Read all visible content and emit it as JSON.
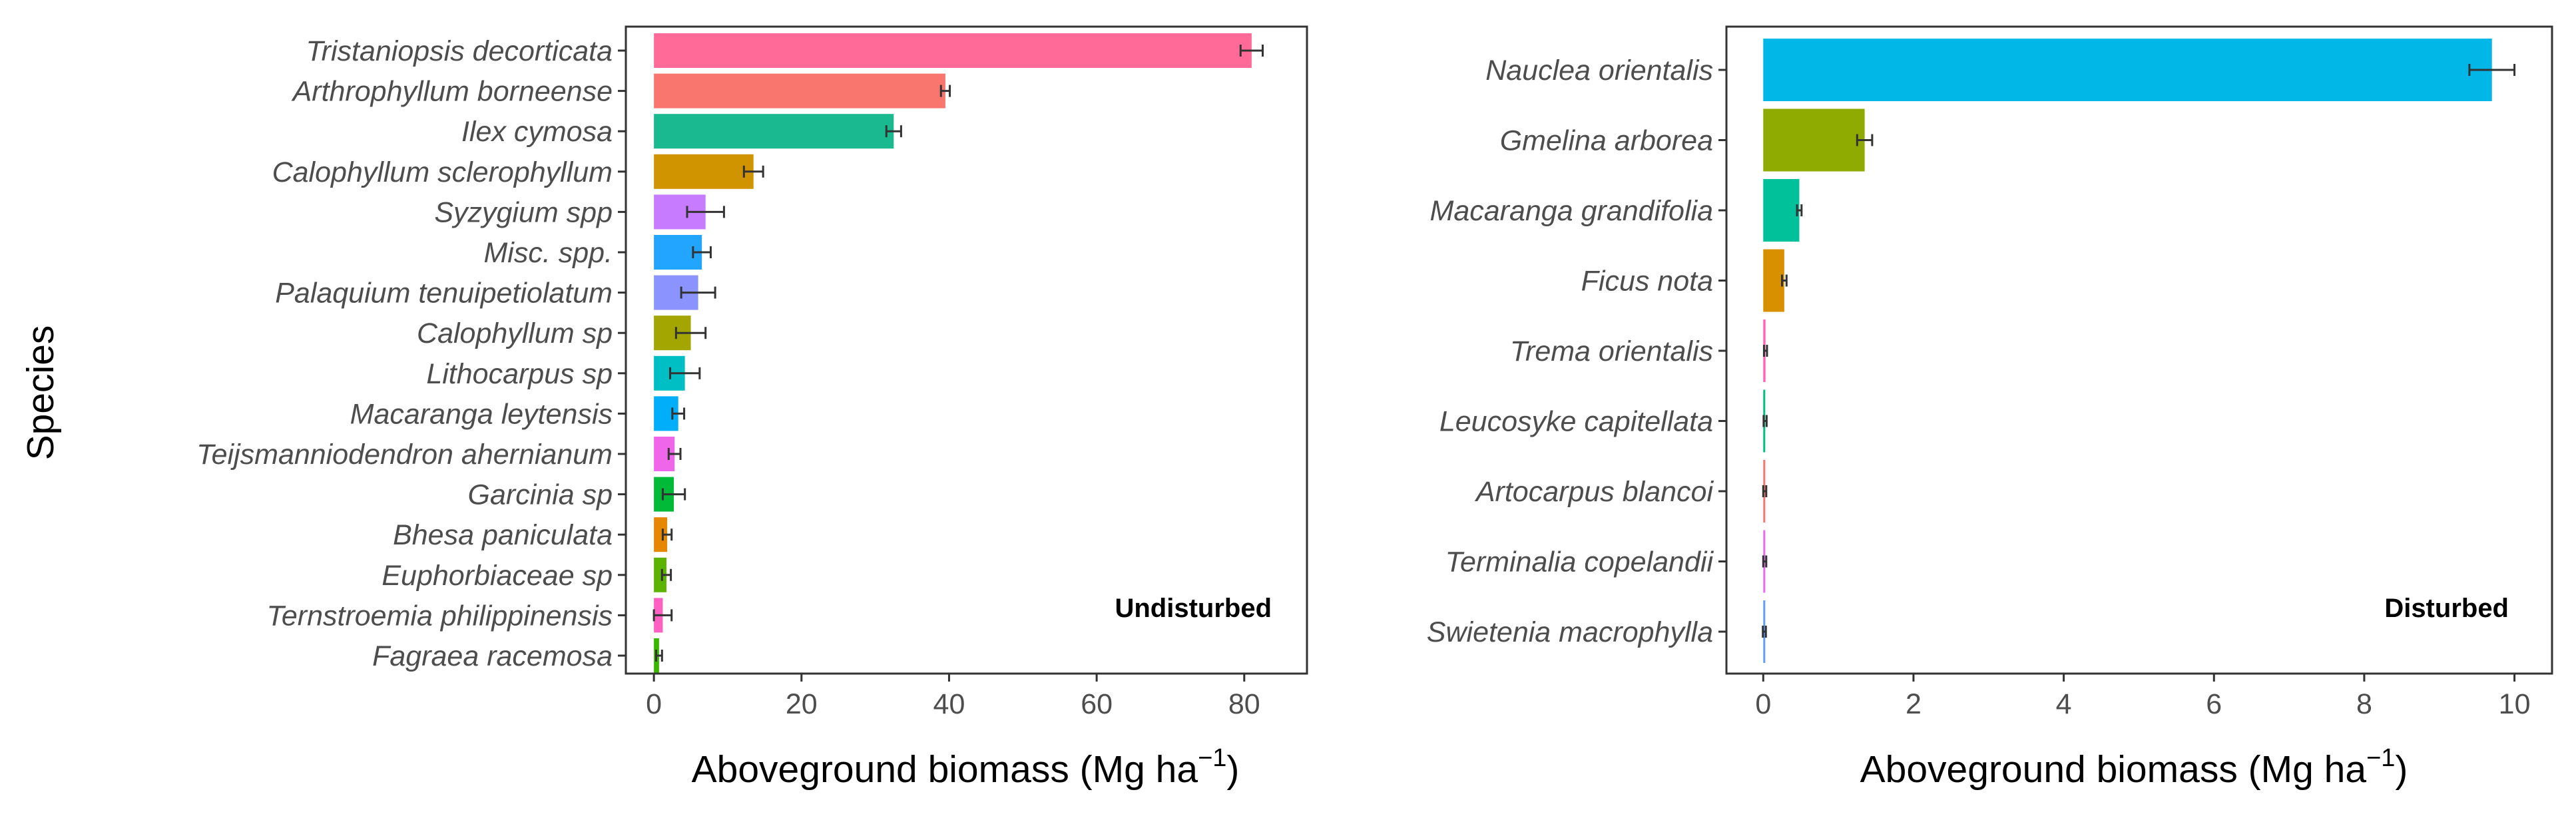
{
  "chart_data": [
    {
      "type": "bar",
      "orientation": "horizontal",
      "panel_label": "Undisturbed",
      "ylabel": "Species",
      "xlabel": "Aboveground biomass (Mg ha",
      "xlabel_sup": "−1",
      "xlabel_close": ")",
      "xlim": [
        -3.8,
        88.5
      ],
      "xticks": [
        0,
        20,
        40,
        60,
        80
      ],
      "xtick_labels": [
        "0",
        "20",
        "40",
        "60",
        "80"
      ],
      "categories": [
        "Tristaniopsis decorticata",
        "Arthrophyllum borneense",
        "Ilex cymosa",
        "Calophyllum sclerophyllum",
        "Syzygium spp",
        "Misc. spp.",
        "Palaquium tenuipetiolatum",
        "Calophyllum sp",
        "Lithocarpus sp",
        "Macaranga leytensis",
        "Teijsmanniodendron ahernianum",
        "Garcinia sp",
        "Bhesa paniculata",
        "Euphorbiaceae sp",
        "Ternstroemia philippinensis",
        "Fagraea racemosa"
      ],
      "values": [
        81,
        39.5,
        32.5,
        13.5,
        7,
        6.5,
        6,
        5,
        4.2,
        3.3,
        2.8,
        2.7,
        1.8,
        1.7,
        1.2,
        0.7
      ],
      "errors": [
        1.5,
        0.6,
        1.0,
        1.3,
        2.5,
        1.2,
        2.3,
        2.0,
        2.0,
        0.8,
        0.8,
        1.5,
        0.6,
        0.6,
        1.2,
        0.4
      ],
      "colors": [
        "#FF6A98",
        "#F8766D",
        "#1BB98F",
        "#D09400",
        "#C77CFF",
        "#22A5FF",
        "#8B93FF",
        "#A3A500",
        "#00BFC4",
        "#00AEFA",
        "#F066EA",
        "#00BA38",
        "#E58700",
        "#5BB300",
        "#FF61C3",
        "#39B600"
      ]
    },
    {
      "type": "bar",
      "orientation": "horizontal",
      "panel_label": "Disturbed",
      "ylabel": "",
      "xlabel": "Aboveground biomass (Mg ha",
      "xlabel_sup": "−1",
      "xlabel_close": ")",
      "xlim": [
        -0.49,
        10.5
      ],
      "xticks": [
        0,
        2,
        4,
        6,
        8,
        10
      ],
      "xtick_labels": [
        "0",
        "2",
        "4",
        "6",
        "8",
        "10"
      ],
      "categories": [
        "Nauclea orientalis",
        "Gmelina arborea",
        "Macaranga grandifolia",
        "Ficus nota",
        "Trema orientalis",
        "Leucosyke capitellata",
        "Artocarpus blancoi",
        "Terminalia copelandii",
        "Swietenia macrophylla"
      ],
      "values": [
        9.7,
        1.35,
        0.48,
        0.28,
        0.03,
        0.025,
        0.02,
        0.02,
        0.015
      ],
      "errors": [
        0.3,
        0.1,
        0.03,
        0.03,
        0.02,
        0.02,
        0.02,
        0.02,
        0.02
      ],
      "colors": [
        "#00B7E8",
        "#8FAA00",
        "#00C19A",
        "#D89000",
        "#FF62BC",
        "#00BF7D",
        "#F8766D",
        "#E76BF3",
        "#619CFF"
      ]
    }
  ]
}
